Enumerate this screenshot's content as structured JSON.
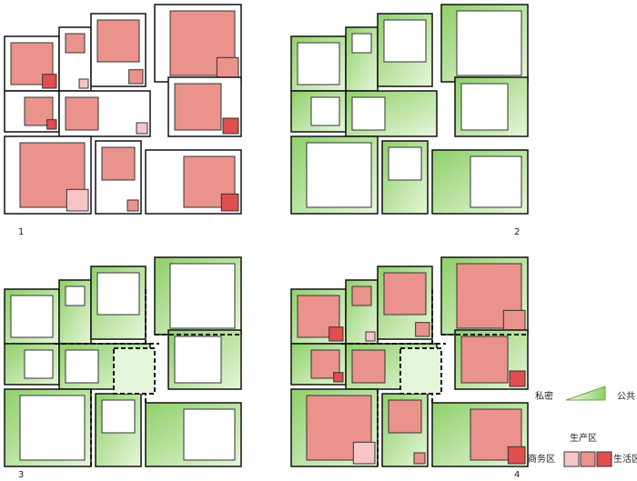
{
  "panels": [
    {
      "label": "1"
    },
    {
      "label": "2"
    },
    {
      "label": "3"
    },
    {
      "label": "4"
    }
  ],
  "legend": {
    "private": "私密",
    "public": "公共",
    "production": "生产区",
    "business": "商务区",
    "living": "生活区"
  }
}
